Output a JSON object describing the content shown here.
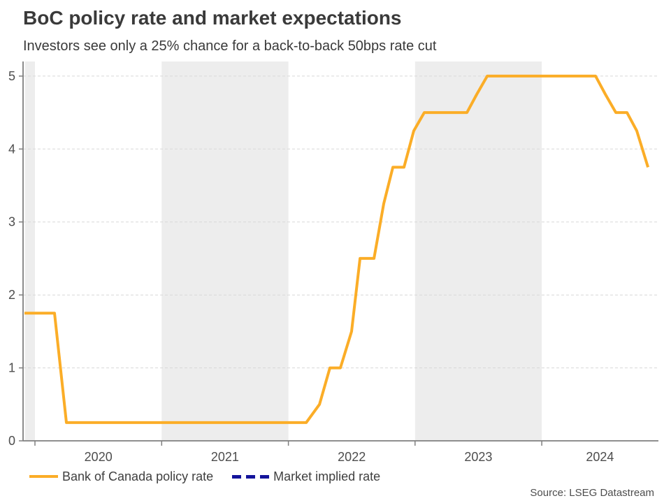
{
  "header": {
    "title": "BoC policy rate and market expectations",
    "subtitle": "Investors see only a 25% chance for a back-to-back 50bps rate cut"
  },
  "footer": {
    "source": "Source: LSEG Datastream"
  },
  "chart_data": {
    "type": "line",
    "title": "BoC policy rate and market expectations",
    "xlabel": "",
    "ylabel": "",
    "x_unit": "year (decimal)",
    "y_unit": "percent",
    "xlim": [
      2019.906,
      2024.921
    ],
    "ylim": [
      0,
      5.2
    ],
    "yticks": [
      0,
      1,
      2,
      3,
      4,
      5
    ],
    "xtick_marks": [
      2020,
      2021,
      2022,
      2023,
      2024
    ],
    "xtick_labels": [
      {
        "label": "2020",
        "center": 2020.5
      },
      {
        "label": "2021",
        "center": 2021.5
      },
      {
        "label": "2022",
        "center": 2022.5
      },
      {
        "label": "2023",
        "center": 2023.5
      },
      {
        "label": "2024",
        "center": 2024.46
      }
    ],
    "shaded_bands": [
      [
        2019.922,
        2020.0
      ],
      [
        2021.0,
        2022.0
      ],
      [
        2023.0,
        2024.0
      ]
    ],
    "grid": {
      "horizontal": true,
      "style": "dashed"
    },
    "legend_position": "bottom-left",
    "series": [
      {
        "name": "Bank of Canada policy rate",
        "color": "#FBAD27",
        "style": "solid",
        "points": [
          [
            2019.917,
            1.75
          ],
          [
            2020.154,
            1.75
          ],
          [
            2020.248,
            0.25
          ],
          [
            2022.141,
            0.25
          ],
          [
            2022.246,
            0.5
          ],
          [
            2022.328,
            1.0
          ],
          [
            2022.411,
            1.0
          ],
          [
            2022.499,
            1.5
          ],
          [
            2022.566,
            2.5
          ],
          [
            2022.676,
            2.5
          ],
          [
            2022.753,
            3.25
          ],
          [
            2022.825,
            3.75
          ],
          [
            2022.913,
            3.75
          ],
          [
            2022.99,
            4.25
          ],
          [
            2023.073,
            4.5
          ],
          [
            2023.41,
            4.5
          ],
          [
            2023.487,
            4.75
          ],
          [
            2023.57,
            5.0
          ],
          [
            2024.425,
            5.0
          ],
          [
            2024.502,
            4.75
          ],
          [
            2024.585,
            4.5
          ],
          [
            2024.673,
            4.5
          ],
          [
            2024.75,
            4.25
          ],
          [
            2024.839,
            3.75
          ]
        ]
      },
      {
        "name": "Market implied rate",
        "color": "#14149B",
        "style": "dashed",
        "points": []
      }
    ],
    "colors": {
      "band": "#EDEDED",
      "grid": "#D8D8D8",
      "axis": "#7F7F7F",
      "tick_label": "#4D4D4D",
      "title_text": "#3A3A3A"
    }
  }
}
